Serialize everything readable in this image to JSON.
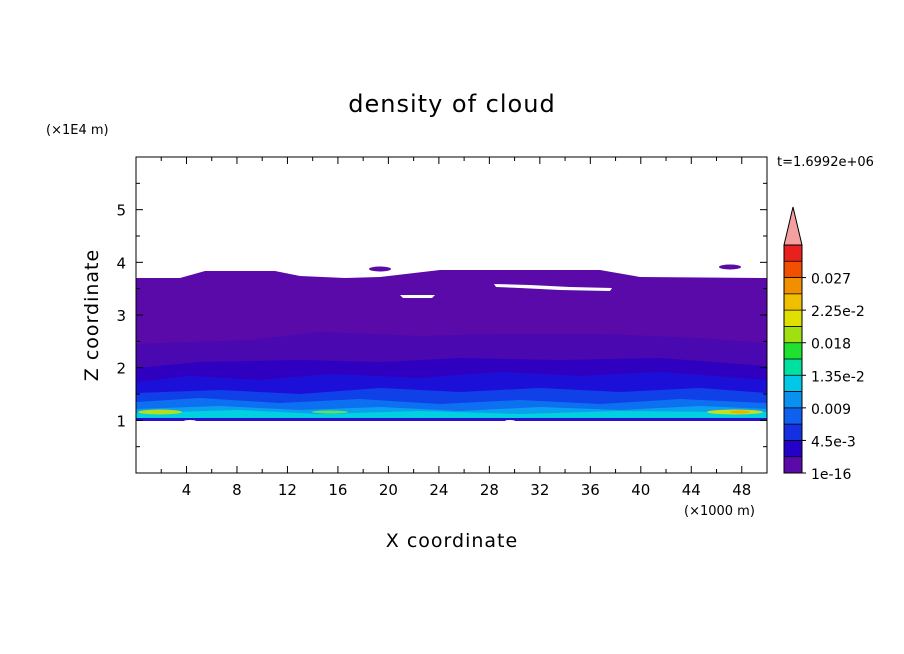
{
  "chart_data": {
    "type": "heatmap",
    "title": "density of cloud",
    "xlabel": "X coordinate",
    "ylabel": "Z coordinate",
    "x_unit": "(×1000 m)",
    "y_unit": "(×1E4 m)",
    "time_label": "t=1.6992e+06",
    "xlim": [
      0,
      50
    ],
    "ylim": [
      0,
      6
    ],
    "x_ticks": [
      "4",
      "8",
      "12",
      "16",
      "20",
      "24",
      "28",
      "32",
      "36",
      "40",
      "44",
      "48"
    ],
    "y_ticks": [
      "1",
      "2",
      "3",
      "4",
      "5"
    ],
    "colorbar": {
      "labels": [
        "0.027",
        "2.25e-2",
        "0.018",
        "1.35e-2",
        "0.009",
        "4.5e-3",
        "1e-16"
      ],
      "colors": [
        "#5a0aa8",
        "#2400c8",
        "#1430e0",
        "#1060f0",
        "#0a90f0",
        "#00c8e6",
        "#00e0a0",
        "#20e030",
        "#a0e010",
        "#e0e000",
        "#f0c000",
        "#f09000",
        "#f05000",
        "#e82020",
        "#f4a0a0"
      ],
      "extend_color": "#f4a0a0"
    },
    "field_summary": {
      "cloud_bottom_z": 1.0,
      "cloud_top_z": [
        3.7,
        3.85
      ],
      "max_density_layer_z": [
        1.05,
        1.2
      ]
    }
  }
}
